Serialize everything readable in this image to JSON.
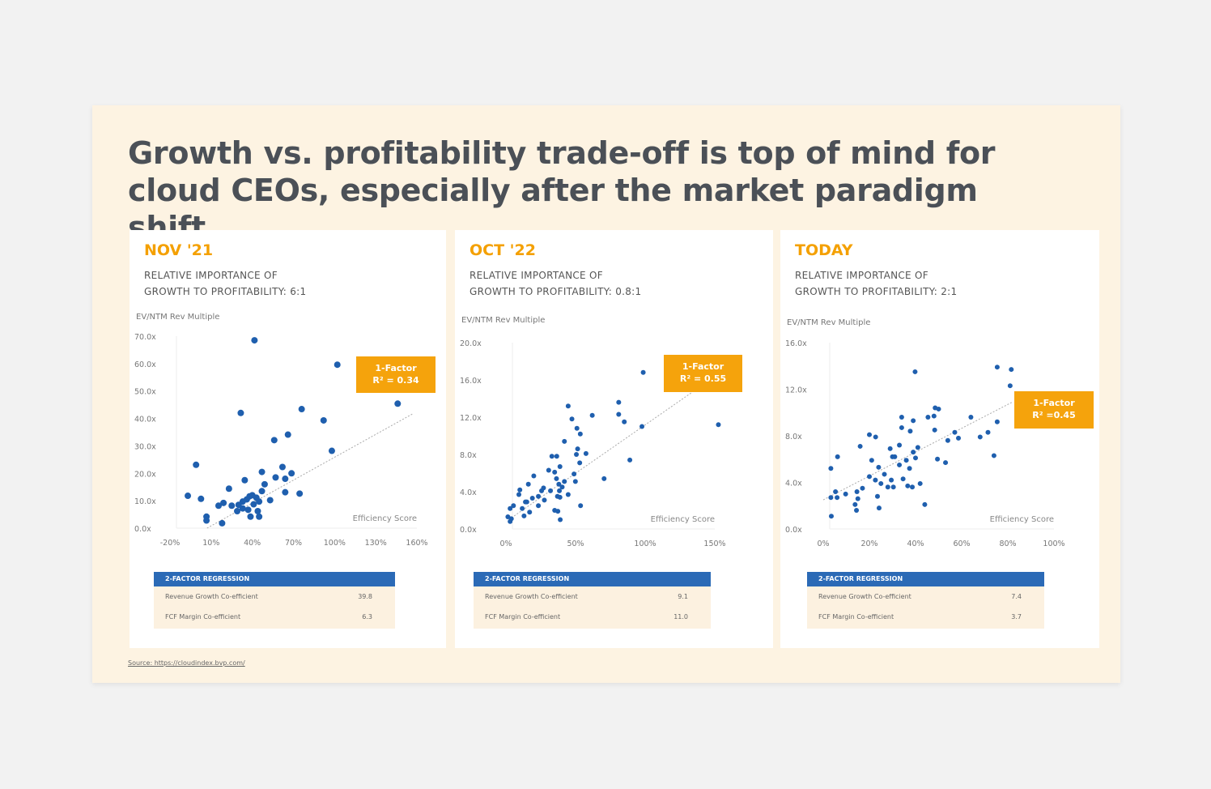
{
  "title": "Growth vs. profitability trade-off is top of mind for cloud CEOs, especially after the market paradigm shift",
  "source": "Source: https://cloudindex.bvp.com/",
  "colors": {
    "accent_orange": "#f4a000",
    "dot_blue": "#1f5fae",
    "table_header": "#2b6ab6",
    "slide_bg": "#fdf3e2"
  },
  "panels": [
    {
      "period": "NOV '21",
      "subtitle_line1": "RELATIVE IMPORTANCE OF",
      "subtitle_line2": "GROWTH TO PROFITABILITY: 6:1",
      "callout_line1": "1-Factor",
      "callout_line2": "R² = 0.34",
      "table": {
        "header": "2-FACTOR REGRESSION",
        "rows": [
          {
            "label": "Revenue Growth Co-efficient",
            "value": "39.8"
          },
          {
            "label": "FCF Margin Co-efficient",
            "value": "6.3"
          }
        ]
      }
    },
    {
      "period": "OCT '22",
      "subtitle_line1": "RELATIVE IMPORTANCE OF",
      "subtitle_line2": "GROWTH TO PROFITABILITY: 0.8:1",
      "callout_line1": "1-Factor",
      "callout_line2": "R² = 0.55",
      "table": {
        "header": "2-FACTOR REGRESSION",
        "rows": [
          {
            "label": "Revenue Growth Co-efficient",
            "value": "9.1"
          },
          {
            "label": "FCF Margin Co-efficient",
            "value": "11.0"
          }
        ]
      }
    },
    {
      "period": "TODAY",
      "subtitle_line1": "RELATIVE IMPORTANCE OF",
      "subtitle_line2": "GROWTH TO PROFITABILITY: 2:1",
      "callout_line1": "1-Factor",
      "callout_line2": "R² =0.45",
      "table": {
        "header": "2-FACTOR REGRESSION",
        "rows": [
          {
            "label": "Revenue Growth Co-efficient",
            "value": "7.4"
          },
          {
            "label": "FCF Margin Co-efficient",
            "value": "3.7"
          }
        ]
      }
    }
  ],
  "chart_data": [
    {
      "type": "scatter",
      "title": "NOV '21",
      "xlabel": "Efficiency Score",
      "ylabel": "EV/NTM Rev Multiple",
      "xlim": [
        -20,
        160
      ],
      "ylim": [
        0,
        70
      ],
      "grid": false,
      "xticks": [
        -20,
        10,
        40,
        70,
        100,
        130,
        160
      ],
      "xtick_labels": [
        "-20%",
        "10%",
        "40%",
        "70%",
        "100%",
        "130%",
        "160%"
      ],
      "yticks": [
        0,
        10,
        20,
        30,
        40,
        50,
        60,
        70
      ],
      "ytick_labels": [
        "0.0x",
        "10.0x",
        "20.0x",
        "30.0x",
        "40.0x",
        "50.0x",
        "60.0x",
        "70.0x"
      ],
      "trendline": [
        [
          7,
          0
        ],
        [
          157,
          41.7
        ]
      ],
      "points": [
        [
          41.6,
          68.5
        ],
        [
          102,
          59.6
        ],
        [
          146,
          45.4
        ],
        [
          31.6,
          42
        ],
        [
          76,
          43.4
        ],
        [
          92,
          39.3
        ],
        [
          66,
          34.1
        ],
        [
          56,
          32.1
        ],
        [
          98,
          28.2
        ],
        [
          -1,
          23.1
        ],
        [
          62,
          22.3
        ],
        [
          47,
          20.5
        ],
        [
          68.6,
          20
        ],
        [
          57,
          18.5
        ],
        [
          64,
          18
        ],
        [
          34.5,
          17.5
        ],
        [
          49,
          16
        ],
        [
          23,
          14.4
        ],
        [
          -7,
          11.8
        ],
        [
          2.6,
          10.7
        ],
        [
          64,
          13.1
        ],
        [
          74.5,
          12.6
        ],
        [
          53,
          10.2
        ],
        [
          43,
          11.1
        ],
        [
          38,
          11.6
        ],
        [
          33,
          9.7
        ],
        [
          45,
          9.7
        ],
        [
          19,
          9.2
        ],
        [
          15.4,
          8.2
        ],
        [
          25,
          8.2
        ],
        [
          29,
          6.2
        ],
        [
          37,
          6.7
        ],
        [
          41,
          8.7
        ],
        [
          6.6,
          4.2
        ],
        [
          6.6,
          2.8
        ],
        [
          18,
          1.8
        ],
        [
          38.7,
          4.2
        ],
        [
          45,
          4.2
        ],
        [
          44,
          6.2
        ],
        [
          33,
          7.2
        ],
        [
          36,
          10.5
        ],
        [
          40,
          12
        ],
        [
          47,
          13.5
        ],
        [
          30,
          8.5
        ]
      ]
    },
    {
      "type": "scatter",
      "title": "OCT '22",
      "xlabel": "Efficiency Score",
      "ylabel": "EV/NTM Rev Multiple",
      "xlim": [
        0,
        150
      ],
      "ylim": [
        0,
        20
      ],
      "grid": false,
      "xticks": [
        0,
        50,
        100,
        150
      ],
      "xtick_labels": [
        "0%",
        "50%",
        "100%",
        "150%"
      ],
      "yticks": [
        0,
        4,
        8,
        12,
        16,
        20
      ],
      "ytick_labels": [
        "0.0x",
        "4.0x",
        "8.0x",
        "12.0x",
        "16.0x",
        "20.0x"
      ],
      "trendline": [
        [
          4,
          1.2
        ],
        [
          133,
          14.6
        ]
      ],
      "points": [
        [
          98.6,
          16.8
        ],
        [
          81,
          13.6
        ],
        [
          81,
          12.3
        ],
        [
          85,
          11.5
        ],
        [
          97.7,
          11
        ],
        [
          152.6,
          11.2
        ],
        [
          44.7,
          13.2
        ],
        [
          62,
          12.2
        ],
        [
          47.4,
          11.8
        ],
        [
          51,
          10.8
        ],
        [
          53.4,
          10.2
        ],
        [
          42,
          9.4
        ],
        [
          51.5,
          8.6
        ],
        [
          50.6,
          8
        ],
        [
          57.5,
          8.1
        ],
        [
          33,
          7.8
        ],
        [
          36.5,
          7.8
        ],
        [
          89,
          7.4
        ],
        [
          53,
          7.1
        ],
        [
          38.8,
          6.7
        ],
        [
          30.7,
          6.3
        ],
        [
          35,
          6.1
        ],
        [
          20,
          5.7
        ],
        [
          48.9,
          5.9
        ],
        [
          70.5,
          5.4
        ],
        [
          49.9,
          5.1
        ],
        [
          36.3,
          5.4
        ],
        [
          42,
          5.1
        ],
        [
          16.1,
          4.8
        ],
        [
          38,
          4.8
        ],
        [
          27,
          4.4
        ],
        [
          25.6,
          4.1
        ],
        [
          32,
          4.1
        ],
        [
          10,
          4.2
        ],
        [
          38.4,
          4.1
        ],
        [
          40.4,
          4.5
        ],
        [
          9.3,
          3.7
        ],
        [
          23.3,
          3.5
        ],
        [
          37,
          3.5
        ],
        [
          38.8,
          3.4
        ],
        [
          44.7,
          3.7
        ],
        [
          19,
          3.3
        ],
        [
          27.6,
          3.1
        ],
        [
          14,
          2.9
        ],
        [
          15,
          2.9
        ],
        [
          23.3,
          2.5
        ],
        [
          53.6,
          2.5
        ],
        [
          5.4,
          2.5
        ],
        [
          3,
          2.2
        ],
        [
          11.7,
          2.2
        ],
        [
          35,
          2
        ],
        [
          37.3,
          1.9
        ],
        [
          17,
          1.8
        ],
        [
          13,
          1.4
        ],
        [
          1.4,
          1.3
        ],
        [
          3.9,
          1.1
        ],
        [
          3,
          0.8
        ],
        [
          39,
          1
        ]
      ]
    },
    {
      "type": "scatter",
      "title": "TODAY",
      "xlabel": "Efficiency Score",
      "ylabel": "EV/NTM Rev Multiple",
      "xlim": [
        0,
        100
      ],
      "ylim": [
        0,
        16
      ],
      "grid": false,
      "xticks": [
        0,
        20,
        40,
        60,
        80,
        100
      ],
      "xtick_labels": [
        "0%",
        "20%",
        "40%",
        "60%",
        "80%",
        "100%"
      ],
      "yticks": [
        0,
        4,
        8,
        12,
        16
      ],
      "ytick_labels": [
        "0.0x",
        "4.0x",
        "8.0x",
        "12.0x",
        "16.0x"
      ],
      "trendline": [
        [
          0,
          2.5
        ],
        [
          82,
          10.9
        ]
      ],
      "points": [
        [
          39.8,
          13.5
        ],
        [
          75.4,
          13.9
        ],
        [
          81.5,
          13.7
        ],
        [
          81,
          12.3
        ],
        [
          48.5,
          10.4
        ],
        [
          50,
          10.3
        ],
        [
          45.4,
          9.6
        ],
        [
          48,
          9.7
        ],
        [
          34,
          9.6
        ],
        [
          39,
          9.3
        ],
        [
          64,
          9.6
        ],
        [
          75.4,
          9.2
        ],
        [
          34,
          8.7
        ],
        [
          37.7,
          8.4
        ],
        [
          48.3,
          8.5
        ],
        [
          57,
          8.3
        ],
        [
          58.6,
          7.8
        ],
        [
          71.4,
          8.3
        ],
        [
          68,
          7.9
        ],
        [
          54,
          7.6
        ],
        [
          20,
          8.1
        ],
        [
          22.7,
          7.9
        ],
        [
          16,
          7.1
        ],
        [
          33,
          7.2
        ],
        [
          41,
          7
        ],
        [
          29,
          6.9
        ],
        [
          39,
          6.6
        ],
        [
          30,
          6.2
        ],
        [
          31,
          6.2
        ],
        [
          40,
          6.1
        ],
        [
          49.5,
          6
        ],
        [
          36,
          5.9
        ],
        [
          53,
          5.7
        ],
        [
          74,
          6.3
        ],
        [
          6.2,
          6.2
        ],
        [
          21,
          5.9
        ],
        [
          33,
          5.5
        ],
        [
          24,
          5.3
        ],
        [
          37.4,
          5.2
        ],
        [
          3.3,
          5.2
        ],
        [
          26.5,
          4.7
        ],
        [
          20,
          4.5
        ],
        [
          22.6,
          4.2
        ],
        [
          29.5,
          4.2
        ],
        [
          34.6,
          4.3
        ],
        [
          25,
          3.9
        ],
        [
          42,
          3.9
        ],
        [
          28,
          3.6
        ],
        [
          30.4,
          3.6
        ],
        [
          36.6,
          3.7
        ],
        [
          38.6,
          3.6
        ],
        [
          5.3,
          3.2
        ],
        [
          14.6,
          3.2
        ],
        [
          17,
          3.5
        ],
        [
          9.7,
          3
        ],
        [
          3.3,
          2.7
        ],
        [
          6,
          2.7
        ],
        [
          15,
          2.6
        ],
        [
          23.5,
          2.8
        ],
        [
          13.8,
          2.1
        ],
        [
          14.4,
          1.6
        ],
        [
          24.2,
          1.8
        ],
        [
          44,
          2.1
        ],
        [
          3.5,
          1.1
        ]
      ]
    }
  ]
}
